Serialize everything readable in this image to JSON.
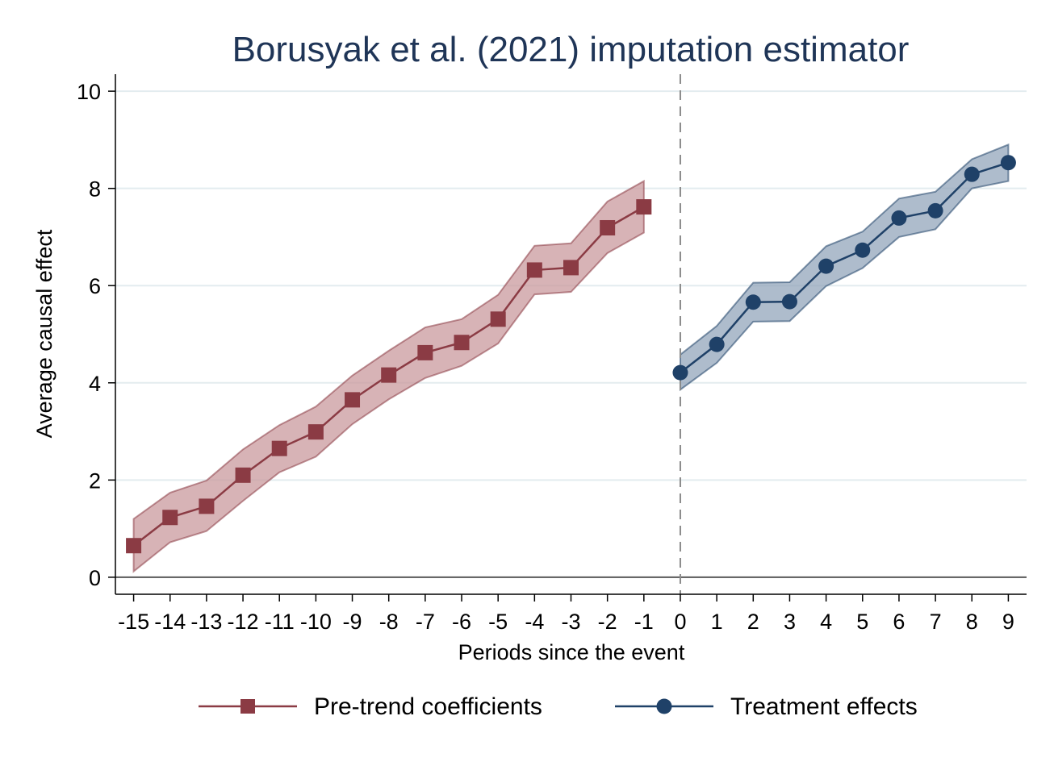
{
  "chart_data": {
    "type": "line",
    "title": "Borusyak et al. (2021) imputation estimator",
    "xlabel": "Periods since the event",
    "ylabel": "Average causal effect",
    "xlim": [
      -15.5,
      9.5
    ],
    "ylim": [
      -0.35,
      10.35
    ],
    "yticks": [
      0,
      2,
      4,
      6,
      8,
      10
    ],
    "xticks": [
      -15,
      -14,
      -13,
      -12,
      -11,
      -10,
      -9,
      -8,
      -7,
      -6,
      -5,
      -4,
      -3,
      -2,
      -1,
      0,
      1,
      2,
      3,
      4,
      5,
      6,
      7,
      8,
      9
    ],
    "reference_line_x": 0,
    "grid": true,
    "legend_position": "bottom",
    "series": [
      {
        "name": "Pre-trend coefficients",
        "marker": "square",
        "color": "#8B3B44",
        "band_color": "#C99A9E",
        "x": [
          -15,
          -14,
          -13,
          -12,
          -11,
          -10,
          -9,
          -8,
          -7,
          -6,
          -5,
          -4,
          -3,
          -2,
          -1
        ],
        "y": [
          0.65,
          1.23,
          1.46,
          2.1,
          2.65,
          2.99,
          3.65,
          4.16,
          4.62,
          4.83,
          5.31,
          6.32,
          6.37,
          7.19,
          7.62
        ],
        "lower": [
          0.12,
          0.72,
          0.95,
          1.57,
          2.16,
          2.48,
          3.15,
          3.66,
          4.1,
          4.35,
          4.81,
          5.82,
          5.87,
          6.67,
          7.09
        ],
        "upper": [
          1.2,
          1.74,
          1.99,
          2.63,
          3.13,
          3.51,
          4.15,
          4.66,
          5.14,
          5.31,
          5.81,
          6.82,
          6.87,
          7.73,
          8.15
        ]
      },
      {
        "name": "Treatment effects",
        "marker": "circle",
        "color": "#1F4168",
        "band_color": "#93A6BB",
        "x": [
          0,
          1,
          2,
          3,
          4,
          5,
          6,
          7,
          8,
          9
        ],
        "y": [
          4.21,
          4.79,
          5.66,
          5.67,
          6.4,
          6.73,
          7.39,
          7.54,
          8.29,
          8.53
        ],
        "lower": [
          3.86,
          4.41,
          5.26,
          5.27,
          5.99,
          6.36,
          7.0,
          7.16,
          8.0,
          8.15
        ],
        "upper": [
          4.58,
          5.17,
          6.06,
          6.07,
          6.81,
          7.11,
          7.79,
          7.93,
          8.6,
          8.9
        ]
      }
    ]
  }
}
